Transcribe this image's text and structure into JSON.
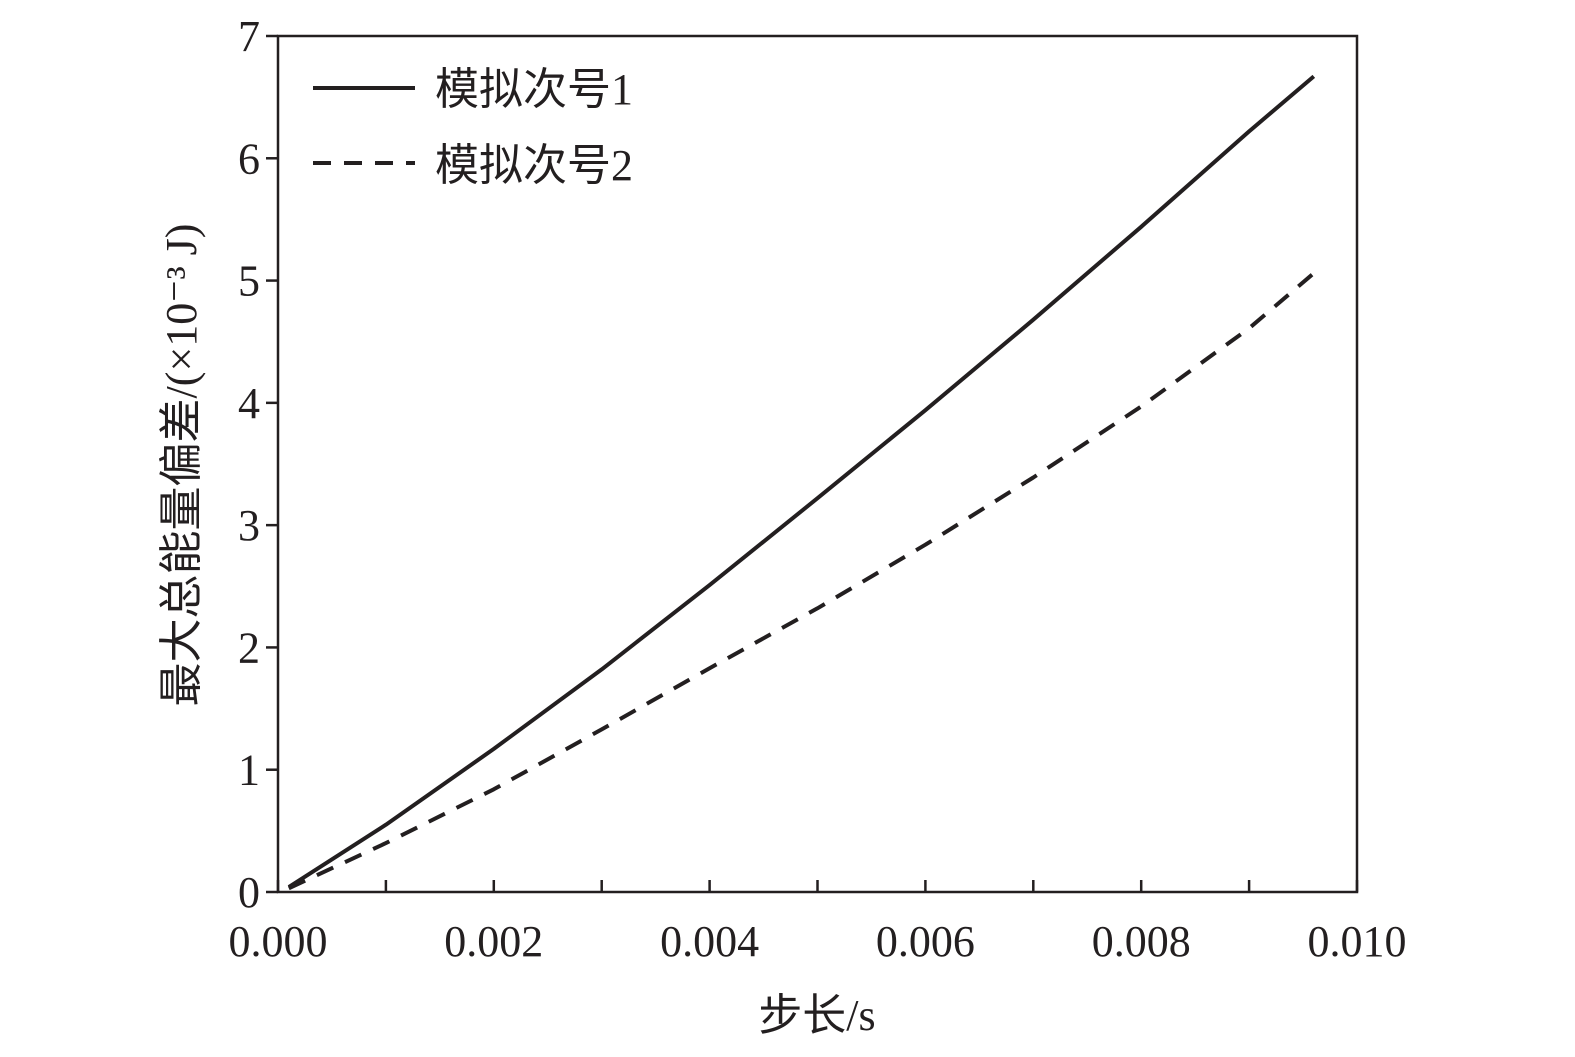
{
  "chart_data": {
    "type": "line",
    "title": "",
    "xlabel": "步长/s",
    "ylabel": "最大总能量偏差/(×10⁻³ J)",
    "xlim": [
      0,
      0.01
    ],
    "ylim": [
      0,
      7
    ],
    "xticks": [
      0,
      0.001,
      0.002,
      0.003,
      0.004,
      0.005,
      0.006,
      0.007,
      0.008,
      0.009,
      0.01
    ],
    "xtick_labels": [
      "0.000",
      "",
      "0.002",
      "",
      "0.004",
      "",
      "0.006",
      "",
      "0.008",
      "",
      "0.010"
    ],
    "yticks": [
      0,
      1,
      2,
      3,
      4,
      5,
      6,
      7
    ],
    "ytick_labels": [
      "0",
      "1",
      "2",
      "3",
      "4",
      "5",
      "6",
      "7"
    ],
    "grid": false,
    "legend_position": "top-left",
    "series": [
      {
        "name": "模拟次号1",
        "style": "solid",
        "color": "#231f20",
        "x": [
          0.0001,
          0.001,
          0.002,
          0.003,
          0.004,
          0.005,
          0.006,
          0.007,
          0.008,
          0.009,
          0.0096
        ],
        "y": [
          0.04,
          0.55,
          1.17,
          1.82,
          2.51,
          3.22,
          3.94,
          4.68,
          5.44,
          6.22,
          6.67
        ]
      },
      {
        "name": "模拟次号2",
        "style": "dashed",
        "color": "#231f20",
        "x": [
          0.0001,
          0.001,
          0.002,
          0.003,
          0.004,
          0.005,
          0.006,
          0.007,
          0.008,
          0.009,
          0.0096
        ],
        "y": [
          0.03,
          0.4,
          0.84,
          1.33,
          1.83,
          2.32,
          2.84,
          3.39,
          3.97,
          4.61,
          5.06
        ]
      }
    ]
  }
}
